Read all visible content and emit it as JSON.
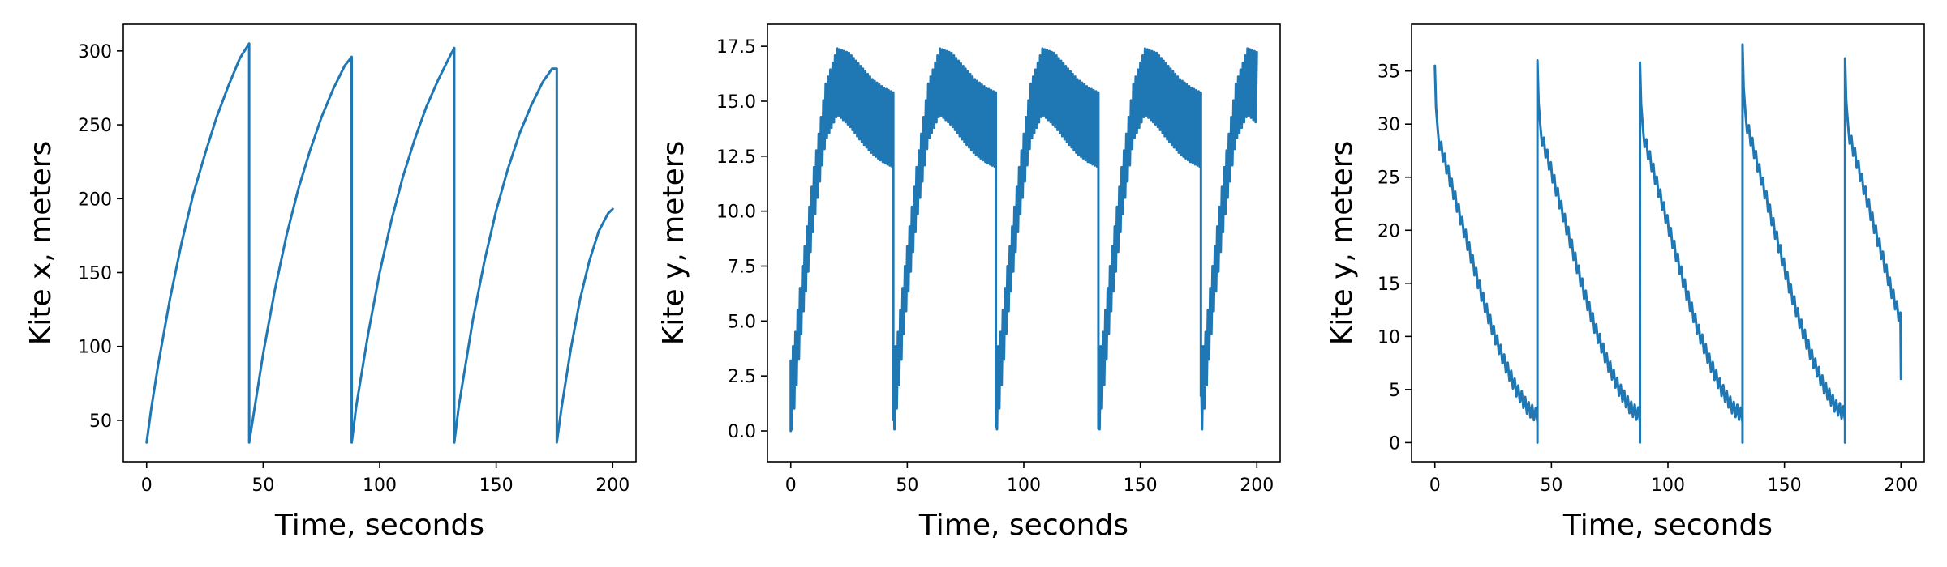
{
  "chart_data": [
    {
      "type": "line",
      "xlabel": "Time, seconds",
      "ylabel": "Kite x, meters",
      "xlim": [
        -10,
        210
      ],
      "ylim": [
        22,
        318
      ],
      "xticks": [
        0,
        50,
        100,
        150,
        200
      ],
      "yticks": [
        50,
        100,
        150,
        200,
        250,
        300
      ],
      "ytick_format": "int",
      "color": "#1f77b4",
      "series": [
        {
          "x": [
            0,
            2,
            5,
            10,
            15,
            20,
            25,
            30,
            35,
            40,
            44,
            44.01,
            46,
            50,
            55,
            60,
            65,
            70,
            75,
            80,
            85,
            88,
            88.01,
            90,
            95,
            100,
            105,
            110,
            115,
            120,
            125,
            130,
            132,
            132.01,
            134,
            140,
            145,
            150,
            155,
            160,
            165,
            170,
            174,
            176,
            176.01,
            178,
            182,
            186,
            190,
            194,
            198,
            200
          ],
          "y": [
            35,
            58,
            88,
            132,
            170,
            203,
            230,
            255,
            276,
            295,
            305,
            35,
            55,
            95,
            138,
            175,
            206,
            232,
            255,
            274,
            290,
            296,
            35,
            60,
            108,
            150,
            185,
            215,
            240,
            262,
            280,
            296,
            302,
            35,
            60,
            118,
            158,
            192,
            220,
            244,
            263,
            279,
            288,
            288,
            35,
            58,
            98,
            132,
            158,
            178,
            190,
            193
          ]
        }
      ]
    },
    {
      "type": "line",
      "xlabel": "Time, seconds",
      "ylabel": "Kite y, meters",
      "xlim": [
        -10,
        210
      ],
      "ylim": [
        -1.4,
        18.5
      ],
      "xticks": [
        0,
        50,
        100,
        150,
        200
      ],
      "yticks": [
        0.0,
        2.5,
        5.0,
        7.5,
        10.0,
        12.5,
        15.0,
        17.5
      ],
      "ytick_format": "1f",
      "color": "#1f77b4",
      "cycles": [
        {
          "start": 0,
          "end": 44,
          "end_drop": 0.5,
          "start_value": 0.0
        },
        {
          "start": 44,
          "end": 88,
          "end_drop": 0.2,
          "start_value": 0.5
        },
        {
          "start": 88,
          "end": 132,
          "end_drop": 0.1,
          "start_value": 0.2
        },
        {
          "start": 132,
          "end": 176,
          "end_drop": 1.6,
          "start_value": 0.1
        },
        {
          "start": 176,
          "end": 200,
          "end_drop": null,
          "start_value": 1.6
        }
      ],
      "envelope_upper": [
        [
          0,
          3.2
        ],
        [
          2,
          4.5
        ],
        [
          5,
          7.5
        ],
        [
          10,
          12.0
        ],
        [
          15,
          15.8
        ],
        [
          20,
          17.4
        ],
        [
          25,
          17.2
        ],
        [
          30,
          16.6
        ],
        [
          35,
          16.0
        ],
        [
          40,
          15.6
        ],
        [
          44,
          15.4
        ]
      ],
      "envelope_lower": [
        [
          0,
          -0.4
        ],
        [
          2,
          1.5
        ],
        [
          5,
          5.0
        ],
        [
          10,
          9.5
        ],
        [
          15,
          13.2
        ],
        [
          20,
          14.4
        ],
        [
          25,
          13.9
        ],
        [
          30,
          13.2
        ],
        [
          35,
          12.6
        ],
        [
          40,
          12.2
        ],
        [
          44,
          12.0
        ]
      ],
      "oscillation_period_s": 1.0
    },
    {
      "type": "line",
      "xlabel": "Time, seconds",
      "ylabel": "Kite y, meters",
      "xlim": [
        -10,
        210
      ],
      "ylim": [
        -1.8,
        39.4
      ],
      "xticks": [
        0,
        50,
        100,
        150,
        200
      ],
      "yticks": [
        0,
        5,
        10,
        15,
        20,
        25,
        30,
        35
      ],
      "ytick_format": "int",
      "color": "#1f77b4",
      "cycles": [
        {
          "start": 0,
          "end": 44,
          "peak": 35.5
        },
        {
          "start": 44,
          "end": 88,
          "peak": 36.0
        },
        {
          "start": 88,
          "end": 132,
          "peak": 35.8
        },
        {
          "start": 132,
          "end": 176,
          "peak": 37.5
        },
        {
          "start": 176,
          "end": 200,
          "peak": 36.2
        }
      ],
      "decay_curve": [
        [
          0,
          35.5
        ],
        [
          1,
          29.0
        ],
        [
          3,
          27.5
        ],
        [
          5,
          26.0
        ],
        [
          10,
          22.0
        ],
        [
          15,
          18.0
        ],
        [
          20,
          14.0
        ],
        [
          25,
          10.5
        ],
        [
          30,
          7.5
        ],
        [
          35,
          5.0
        ],
        [
          40,
          3.2
        ],
        [
          44,
          2.5
        ]
      ],
      "oscillation_period_s": 1.5,
      "oscillation_amplitude": 1.3,
      "final_value": 6.0
    }
  ]
}
